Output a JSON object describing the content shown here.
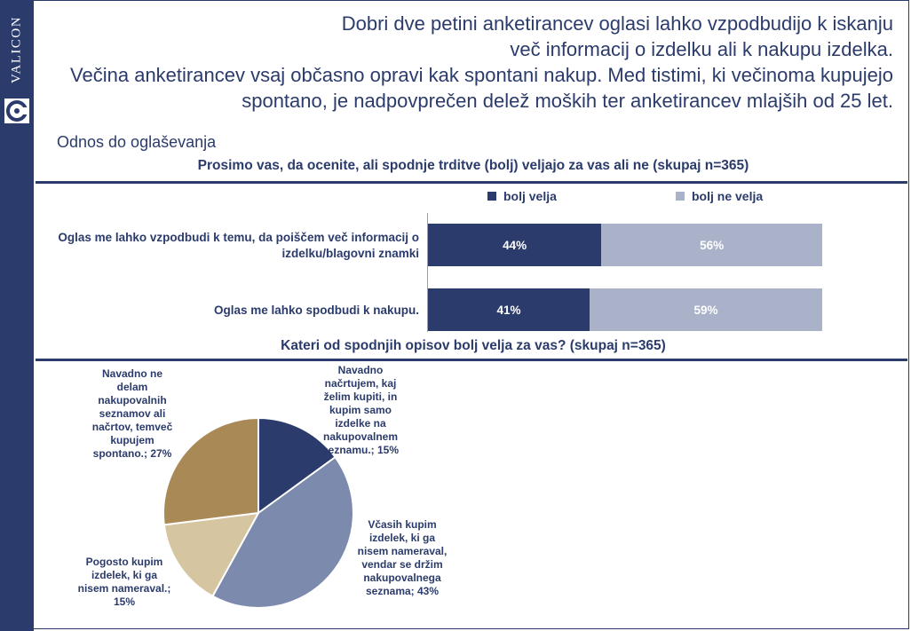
{
  "brand": {
    "name": "VALICON"
  },
  "header": {
    "lines": [
      "Dobri dve petini anketirancev oglasi lahko vzpodbudijo k iskanju",
      "več informacij o izdelku ali k nakupu izdelka.",
      "Večina anketirancev vsaj občasno opravi kak spontani nakup. Med tistimi, ki večinoma kupujejo",
      "spontano, je nadpovprečen delež moških ter anketirancev mlajših od 25 let."
    ]
  },
  "section_title": "Odnos do oglaševanja",
  "colors": {
    "dark": "#2b3b6b",
    "light": "#a9b2c9",
    "pie_mid": "#7c8aad",
    "pie_tan": "#d5c5a0",
    "pie_brown": "#a98a57"
  },
  "chart_data": [
    {
      "type": "bar",
      "orientation": "horizontal",
      "stacked": true,
      "title": "Prosimo vas, da ocenite, ali spodnje trditve (bolj) veljajo za vas ali ne (skupaj n=365)",
      "categories": [
        "Oglas me lahko vzpodbudi k temu, da poiščem več informacij o izdelku/blagovni znamki",
        "Oglas me lahko spodbudi k nakupu."
      ],
      "series": [
        {
          "name": "bolj velja",
          "values": [
            44,
            41
          ],
          "labels": [
            "44%",
            "41%"
          ],
          "color": "#2b3b6b"
        },
        {
          "name": "bolj ne velja",
          "values": [
            56,
            59
          ],
          "labels": [
            "56%",
            "59%"
          ],
          "color": "#a9b2c9"
        }
      ],
      "xlim": [
        0,
        100
      ],
      "legend": "top"
    },
    {
      "type": "pie",
      "title": "Kateri od spodnjih opisov bolj velja za vas? (skupaj n=365)",
      "slices": [
        {
          "label": "Navadno načrtujem, kaj želim kupiti, in kupim samo izdelke na nakupovalnem seznamu.; 15%",
          "value": 15,
          "color": "#2b3b6b"
        },
        {
          "label": "Včasih kupim izdelek, ki ga nisem nameraval, vendar se držim nakupovalnega seznama; 43%",
          "value": 43,
          "color": "#7c8aad"
        },
        {
          "label": "Pogosto kupim izdelek, ki ga nisem nameraval.; 15%",
          "value": 15,
          "color": "#d5c5a0"
        },
        {
          "label": "Navadno ne delam nakupovalnih seznamov ali načrtov, temveč kupujem spontano.; 27%",
          "value": 27,
          "color": "#a98a57"
        }
      ]
    }
  ]
}
